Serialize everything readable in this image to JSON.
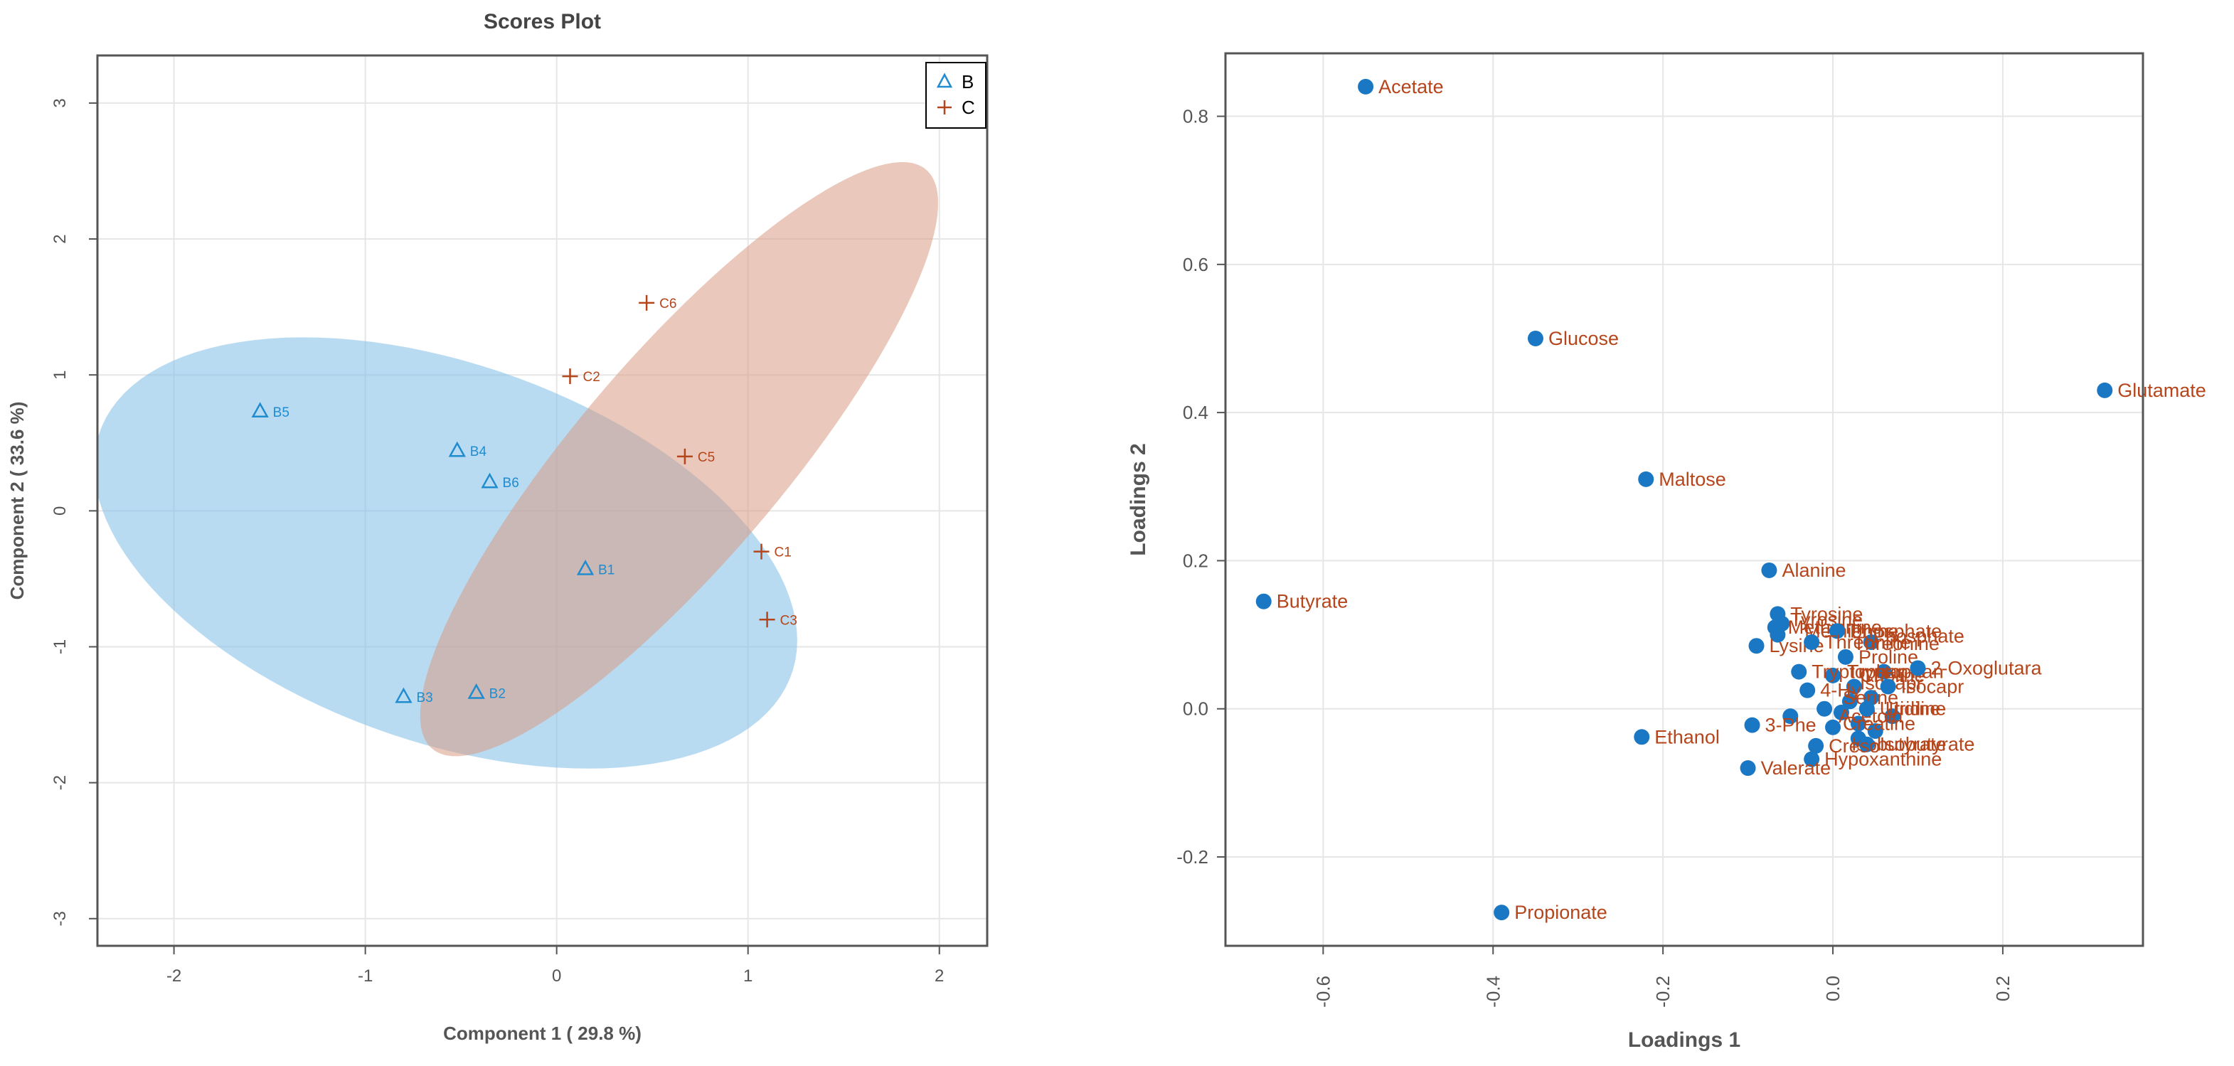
{
  "chart_data": [
    {
      "type": "scatter",
      "title": "Scores Plot",
      "xlabel": "Component 1 ( 29.8 %)",
      "ylabel": "Component 2 ( 33.6 %)",
      "xlim": [
        -2.4,
        2.25
      ],
      "ylim": [
        -3.2,
        3.35
      ],
      "xticks": [
        "-2",
        "-1",
        "0",
        "1",
        "2"
      ],
      "yticks": [
        "-3",
        "-2",
        "-1",
        "0",
        "1",
        "2",
        "3"
      ],
      "grid": true,
      "legend": {
        "placement": "top-right",
        "entries": [
          {
            "name": "B",
            "marker": "triangle",
            "color": "#1f8ccf"
          },
          {
            "name": "C",
            "marker": "plus",
            "color": "#b5451b"
          }
        ]
      },
      "series": [
        {
          "name": "B",
          "marker": "triangle",
          "color": "#1f8ccf",
          "ellipse_color": "#7fbde8",
          "points": [
            {
              "label": "B1",
              "x": 0.15,
              "y": -0.43
            },
            {
              "label": "B2",
              "x": -0.42,
              "y": -1.34
            },
            {
              "label": "B3",
              "x": -0.8,
              "y": -1.37
            },
            {
              "label": "B4",
              "x": -0.52,
              "y": 0.44
            },
            {
              "label": "B5",
              "x": -1.55,
              "y": 0.73
            },
            {
              "label": "B6",
              "x": -0.35,
              "y": 0.21
            }
          ],
          "ellipse": {
            "cx": -0.58,
            "cy": -0.31,
            "rx": 2.05,
            "ry": 1.3,
            "angle_deg": -35
          }
        },
        {
          "name": "C",
          "marker": "plus",
          "color": "#b5451b",
          "ellipse_color": "#d99a85",
          "points": [
            {
              "label": "C1",
              "x": 1.07,
              "y": -0.3
            },
            {
              "label": "C2",
              "x": 0.07,
              "y": 0.99
            },
            {
              "label": "C3",
              "x": 1.1,
              "y": -0.8
            },
            {
              "label": "C5",
              "x": 0.67,
              "y": 0.4
            },
            {
              "label": "C6",
              "x": 0.47,
              "y": 1.53
            }
          ],
          "ellipse": {
            "cx": 0.64,
            "cy": 0.38,
            "rx": 2.5,
            "ry": 0.6,
            "angle_deg": 60
          }
        }
      ]
    },
    {
      "type": "scatter",
      "title": "",
      "xlabel": "Loadings 1",
      "ylabel": "Loadings 2",
      "xlim": [
        -0.715,
        0.365
      ],
      "ylim": [
        -0.32,
        0.885
      ],
      "xticks": [
        "-0.6",
        "-0.4",
        "-0.2",
        "0.0",
        "0.2"
      ],
      "yticks": [
        "-0.2",
        "0.0",
        "0.2",
        "0.4",
        "0.6",
        "0.8"
      ],
      "grid": true,
      "point_color": "#1a77c3",
      "label_color": "#b5451b",
      "points": [
        {
          "label": "Acetate",
          "x": -0.55,
          "y": 0.84
        },
        {
          "label": "Glucose",
          "x": -0.35,
          "y": 0.5
        },
        {
          "label": "Glutamate",
          "x": 0.32,
          "y": 0.43
        },
        {
          "label": "Maltose",
          "x": -0.22,
          "y": 0.31
        },
        {
          "label": "Alanine",
          "x": -0.075,
          "y": 0.187
        },
        {
          "label": "Butyrate",
          "x": -0.67,
          "y": 0.145
        },
        {
          "label": "Tyrosine",
          "x": -0.065,
          "y": 0.128
        },
        {
          "label": "Methionine",
          "x": -0.068,
          "y": 0.11
        },
        {
          "label": "Phosphate",
          "x": 0.005,
          "y": 0.105
        },
        {
          "label": "Lysine",
          "x": -0.09,
          "y": 0.085
        },
        {
          "label": "Threonine",
          "x": -0.025,
          "y": 0.09
        },
        {
          "label": "Proline",
          "x": 0.015,
          "y": 0.07
        },
        {
          "label": "2-Oxoglutara",
          "x": 0.1,
          "y": 0.055
        },
        {
          "label": "Tryptophan",
          "x": -0.04,
          "y": 0.05
        },
        {
          "label": "Isocapr",
          "x": 0.065,
          "y": 0.03
        },
        {
          "label": "4-Hy",
          "x": -0.03,
          "y": 0.025
        },
        {
          "label": "Uridine",
          "x": 0.04,
          "y": 0.0
        },
        {
          "label": "3-Phe",
          "x": -0.095,
          "y": -0.022
        },
        {
          "label": "Ethanol",
          "x": -0.225,
          "y": -0.038
        },
        {
          "label": "Isobutyrate",
          "x": 0.04,
          "y": -0.048
        },
        {
          "label": "Creso",
          "x": -0.02,
          "y": -0.05
        },
        {
          "label": "Hypoxanthine",
          "x": -0.025,
          "y": -0.068
        },
        {
          "label": "Valerate",
          "x": -0.1,
          "y": -0.08
        },
        {
          "label": "Propionate",
          "x": -0.39,
          "y": -0.275
        }
      ],
      "unlabeled_points": [
        {
          "x": -0.05,
          "y": -0.01
        },
        {
          "x": -0.01,
          "y": 0.0
        },
        {
          "x": 0.01,
          "y": -0.005
        },
        {
          "x": 0.02,
          "y": 0.01
        },
        {
          "x": 0.03,
          "y": -0.02
        },
        {
          "x": 0.045,
          "y": 0.015
        },
        {
          "x": 0.05,
          "y": -0.03
        },
        {
          "x": 0.06,
          "y": 0.05
        },
        {
          "x": 0.07,
          "y": -0.01
        },
        {
          "x": 0.0,
          "y": 0.045
        },
        {
          "x": -0.065,
          "y": 0.1
        },
        {
          "x": 0.045,
          "y": 0.09
        },
        {
          "x": 0.03,
          "y": -0.04
        },
        {
          "x": -0.06,
          "y": 0.115
        },
        {
          "x": 0.0,
          "y": -0.025
        },
        {
          "x": 0.025,
          "y": 0.03
        }
      ],
      "cluster_labels": [
        {
          "label": "Tyrosine",
          "x": -0.062,
          "y": 0.12
        },
        {
          "label": "Methionine",
          "x": -0.045,
          "y": 0.105
        },
        {
          "label": "Phosphate",
          "x": 0.035,
          "y": 0.098
        },
        {
          "label": "Threonine",
          "x": 0.012,
          "y": 0.088
        },
        {
          "label": "Tryptophan",
          "x": 0.005,
          "y": 0.05
        },
        {
          "label": "Choline",
          "x": 0.02,
          "y": 0.045
        },
        {
          "label": "Isocapr",
          "x": 0.02,
          "y": 0.035
        },
        {
          "label": "Serine",
          "x": 0.0,
          "y": 0.015
        },
        {
          "label": "Uridine",
          "x": 0.05,
          "y": 0.0
        },
        {
          "label": "Acetoin",
          "x": -0.005,
          "y": -0.01
        },
        {
          "label": "Creatine",
          "x": 0.0,
          "y": -0.02
        },
        {
          "label": "Isobutyrate",
          "x": 0.01,
          "y": -0.048
        }
      ]
    }
  ]
}
